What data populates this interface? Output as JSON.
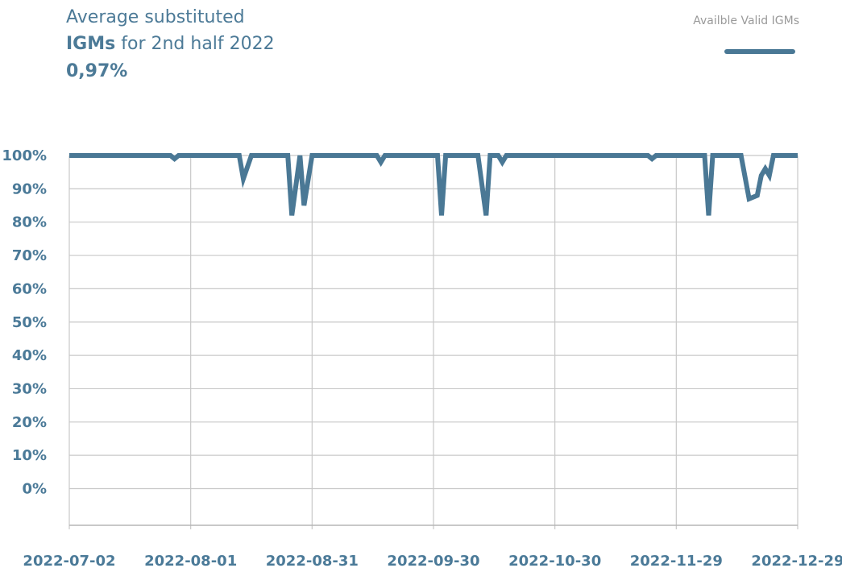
{
  "chart_data": {
    "type": "line",
    "title": [
      "Average substituted",
      "IGMs",
      "for 2nd half 2022"
    ],
    "subtitle": "0,97%",
    "x": [
      "2022-07-02",
      "2022-07-27",
      "2022-07-28",
      "2022-07-29",
      "2022-08-13",
      "2022-08-14",
      "2022-08-16",
      "2022-08-25",
      "2022-08-26",
      "2022-08-28",
      "2022-08-29",
      "2022-08-31",
      "2022-09-16",
      "2022-09-17",
      "2022-09-18",
      "2022-10-01",
      "2022-10-02",
      "2022-10-03",
      "2022-10-11",
      "2022-10-13",
      "2022-10-14",
      "2022-10-16",
      "2022-10-17",
      "2022-10-18",
      "2022-11-22",
      "2022-11-23",
      "2022-11-24",
      "2022-12-06",
      "2022-12-07",
      "2022-12-08",
      "2022-12-15",
      "2022-12-17",
      "2022-12-19",
      "2022-12-20",
      "2022-12-21",
      "2022-12-22",
      "2022-12-23",
      "2022-12-29"
    ],
    "series": [
      {
        "name": "Availble Valid IGMs",
        "color": "#4a7895",
        "values": [
          100,
          100,
          99,
          100,
          100,
          93,
          100,
          100,
          82,
          100,
          85,
          100,
          100,
          98,
          100,
          100,
          82,
          100,
          100,
          82,
          100,
          100,
          98,
          100,
          100,
          99,
          100,
          100,
          82,
          100,
          100,
          87,
          88,
          94,
          96,
          94,
          100,
          100
        ]
      }
    ],
    "xlim": [
      "2022-07-02",
      "2022-12-29"
    ],
    "xticks": [
      "2022-07-02",
      "2022-08-01",
      "2022-08-31",
      "2022-09-30",
      "2022-10-30",
      "2022-11-29",
      "2022-12-29"
    ],
    "ylim": [
      -11,
      100
    ],
    "yticks": [
      {
        "value": 0,
        "label": "0%"
      },
      {
        "value": 10,
        "label": "10%"
      },
      {
        "value": 20,
        "label": "20%"
      },
      {
        "value": 30,
        "label": "30%"
      },
      {
        "value": 40,
        "label": "40%"
      },
      {
        "value": 50,
        "label": "50%"
      },
      {
        "value": 60,
        "label": "60%"
      },
      {
        "value": 70,
        "label": "70%"
      },
      {
        "value": 80,
        "label": "80%"
      },
      {
        "value": 90,
        "label": "90%"
      },
      {
        "value": 100,
        "label": "100%"
      }
    ],
    "grid": true,
    "legend": "top-right"
  }
}
